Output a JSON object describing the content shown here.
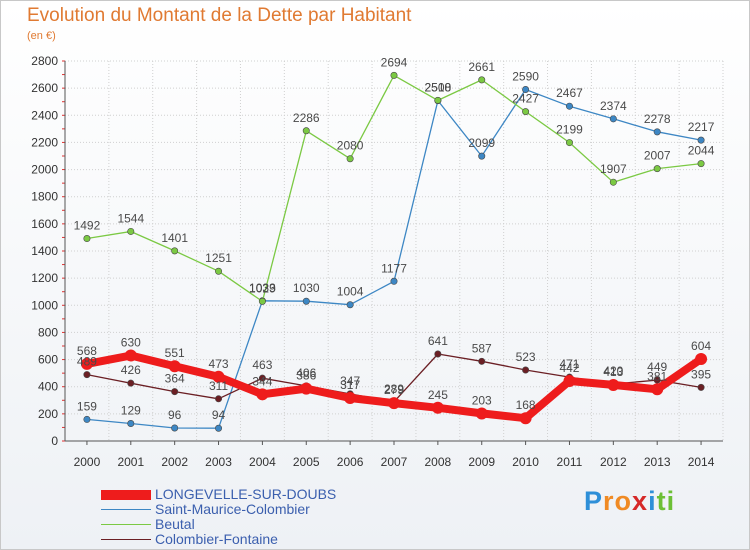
{
  "title": "Evolution du Montant de la Dette par Habitant",
  "subtitle": "(en €)",
  "logo": {
    "chars": [
      "P",
      "r",
      "o",
      "x",
      "i",
      "t",
      "i"
    ],
    "colors": [
      "#2e8fd8",
      "#f08a24",
      "#f08a24",
      "#d62828",
      "#2e8fd8",
      "#6cbf35",
      "#6cbf35"
    ]
  },
  "chart_data": {
    "type": "line",
    "x": [
      "2000",
      "2001",
      "2002",
      "2003",
      "2004",
      "2005",
      "2006",
      "2007",
      "2008",
      "2009",
      "2010",
      "2011",
      "2012",
      "2013",
      "2014"
    ],
    "ylim": [
      0,
      2800
    ],
    "yticks": [
      0,
      200,
      400,
      600,
      800,
      1000,
      1200,
      1400,
      1600,
      1800,
      2000,
      2200,
      2400,
      2600,
      2800
    ],
    "grid": true,
    "legend_position": "bottom",
    "series": [
      {
        "name": "LONGEVELLE-SUR-DOUBS",
        "color": "#ee1c1c",
        "values": [
          568,
          630,
          551,
          473,
          344,
          386,
          317,
          279,
          245,
          203,
          168,
          442,
          413,
          381,
          604
        ],
        "labels": [
          "568",
          "630",
          "551",
          "473",
          "344",
          "386",
          "317",
          "279",
          "245",
          "203",
          "168",
          "442",
          "413",
          "381",
          "604"
        ]
      },
      {
        "name": "Saint-Maurice-Colombier",
        "color": "#3d87c4",
        "values": [
          159,
          129,
          96,
          94,
          1033,
          1030,
          1004,
          1177,
          2508,
          2099,
          2590,
          2467,
          2374,
          2278,
          2217
        ],
        "labels": [
          "159",
          "129",
          "96",
          "94",
          "1033",
          "1030",
          "1004",
          "1177",
          "2508",
          "2099",
          "2590",
          "2467",
          "2374",
          "2278",
          "2217"
        ]
      },
      {
        "name": "Beutal",
        "color": "#7bc943",
        "values": [
          1492,
          1544,
          1401,
          1251,
          1029,
          2286,
          2080,
          2694,
          2510,
          2661,
          2427,
          2199,
          1907,
          2007,
          2044
        ],
        "labels": [
          "1492",
          "1544",
          "1401",
          "1251",
          "1029",
          "2286",
          "2080",
          "2694",
          "2510",
          "2661",
          "2427",
          "2199",
          "1907",
          "2007",
          "2044"
        ]
      },
      {
        "name": "Colombier-Fontaine",
        "color": "#6b1f24",
        "values": [
          489,
          426,
          364,
          311,
          463,
          406,
          347,
          289,
          641,
          587,
          523,
          471,
          420,
          449,
          395
        ],
        "labels": [
          "489",
          "426",
          "364",
          "311",
          "463",
          "406",
          "347",
          "289",
          "641",
          "587",
          "523",
          "471",
          "420",
          "449",
          "395"
        ]
      }
    ]
  }
}
